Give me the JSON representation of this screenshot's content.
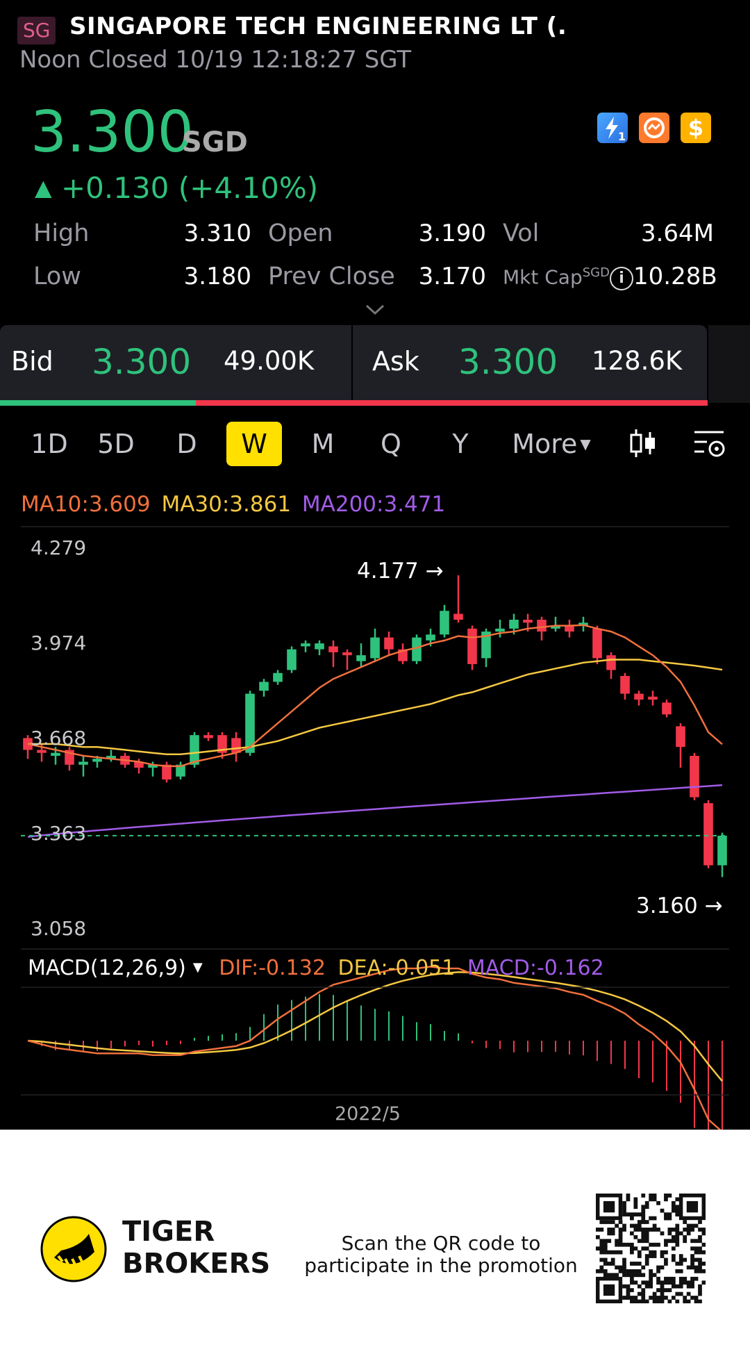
{
  "header": {
    "market_badge": "SG",
    "name": "SINGAPORE TECH ENGINEERING LT (.",
    "status": "Noon Closed 10/19 12:18:27 SGT"
  },
  "quote": {
    "price": "3.300",
    "currency": "SGD",
    "arrow": "▲",
    "change": "+0.130 (+4.10%)",
    "color_up": "#2fc27c",
    "color_down": "#f2374b"
  },
  "badges": [
    "lightning-icon",
    "exchange-icon",
    "dollar-icon"
  ],
  "badge_text": {
    "lightning": "1",
    "dollar": "$"
  },
  "stats": {
    "high_label": "High",
    "high": "3.310",
    "open_label": "Open",
    "open": "3.190",
    "vol_label": "Vol",
    "vol": "3.64M",
    "low_label": "Low",
    "low": "3.180",
    "prev_label": "Prev Close",
    "prev": "3.170",
    "mktcap_label": "Mkt Cap",
    "mktcap_sup": "SGD",
    "mktcap": "10.28B"
  },
  "bid_ask": {
    "bid_label": "Bid",
    "bid_price": "3.300",
    "bid_size": "49.00K",
    "ask_label": "Ask",
    "ask_price": "3.300",
    "ask_size": "128.6K",
    "bid_ratio": 0.277
  },
  "periods": {
    "tabs": [
      "1D",
      "5D",
      "D",
      "W",
      "M",
      "Q",
      "Y"
    ],
    "active": "W",
    "more_label": "More"
  },
  "ma": {
    "ma10": "MA10:3.609",
    "ma30": "MA30:3.861",
    "ma200": "MA200:3.471",
    "ma10_color": "#f0703c",
    "ma30_color": "#f5c842",
    "ma200_color": "#a25ce8"
  },
  "chart_data": {
    "type": "candlestick",
    "y_ticks": [
      "4.279",
      "3.974",
      "3.668",
      "3.363",
      "3.058"
    ],
    "ylim": [
      3.058,
      4.279
    ],
    "max_label": "4.177",
    "min_label": "3.160",
    "last_price_line": 3.3,
    "candles": [
      [
        3.63,
        3.59,
        3.64,
        3.56
      ],
      [
        3.59,
        3.58,
        3.61,
        3.55
      ],
      [
        3.57,
        3.58,
        3.6,
        3.54
      ],
      [
        3.59,
        3.54,
        3.6,
        3.52
      ],
      [
        3.54,
        3.55,
        3.57,
        3.5
      ],
      [
        3.55,
        3.56,
        3.57,
        3.53
      ],
      [
        3.56,
        3.57,
        3.59,
        3.55
      ],
      [
        3.57,
        3.54,
        3.58,
        3.53
      ],
      [
        3.55,
        3.53,
        3.56,
        3.51
      ],
      [
        3.53,
        3.54,
        3.55,
        3.5
      ],
      [
        3.54,
        3.49,
        3.55,
        3.48
      ],
      [
        3.5,
        3.54,
        3.55,
        3.49
      ],
      [
        3.54,
        3.64,
        3.65,
        3.53
      ],
      [
        3.64,
        3.63,
        3.65,
        3.62
      ],
      [
        3.64,
        3.58,
        3.65,
        3.56
      ],
      [
        3.63,
        3.58,
        3.65,
        3.55
      ],
      [
        3.58,
        3.78,
        3.79,
        3.57
      ],
      [
        3.79,
        3.82,
        3.83,
        3.77
      ],
      [
        3.82,
        3.85,
        3.86,
        3.81
      ],
      [
        3.86,
        3.93,
        3.94,
        3.85
      ],
      [
        3.94,
        3.95,
        3.96,
        3.92
      ],
      [
        3.93,
        3.95,
        3.96,
        3.91
      ],
      [
        3.94,
        3.92,
        3.96,
        3.87
      ],
      [
        3.92,
        3.91,
        3.93,
        3.86
      ],
      [
        3.89,
        3.91,
        3.95,
        3.87
      ],
      [
        3.9,
        3.97,
        4.0,
        3.89
      ],
      [
        3.97,
        3.93,
        3.99,
        3.91
      ],
      [
        3.93,
        3.89,
        3.95,
        3.88
      ],
      [
        3.89,
        3.97,
        3.98,
        3.88
      ],
      [
        3.96,
        3.98,
        4.0,
        3.94
      ],
      [
        3.98,
        4.06,
        4.08,
        3.97
      ],
      [
        4.05,
        4.03,
        4.18,
        4.02
      ],
      [
        4.0,
        3.88,
        4.01,
        3.86
      ],
      [
        3.9,
        3.99,
        4.0,
        3.87
      ],
      [
        3.99,
        4.0,
        4.03,
        3.97
      ],
      [
        4.0,
        4.03,
        4.05,
        3.98
      ],
      [
        4.03,
        4.02,
        4.05,
        3.99
      ],
      [
        4.03,
        3.99,
        4.04,
        3.96
      ],
      [
        4.0,
        4.01,
        4.04,
        3.99
      ],
      [
        4.01,
        3.99,
        4.03,
        3.97
      ],
      [
        4.01,
        4.02,
        4.04,
        3.99
      ],
      [
        4.0,
        3.9,
        4.01,
        3.88
      ],
      [
        3.91,
        3.86,
        3.92,
        3.83
      ],
      [
        3.84,
        3.78,
        3.85,
        3.76
      ],
      [
        3.78,
        3.76,
        3.79,
        3.74
      ],
      [
        3.77,
        3.76,
        3.79,
        3.74
      ],
      [
        3.75,
        3.71,
        3.76,
        3.7
      ],
      [
        3.67,
        3.6,
        3.68,
        3.53
      ],
      [
        3.57,
        3.43,
        3.58,
        3.42
      ],
      [
        3.41,
        3.2,
        3.42,
        3.19
      ],
      [
        3.2,
        3.3,
        3.31,
        3.16
      ]
    ],
    "ma10": [
      3.61,
      3.6,
      3.59,
      3.58,
      3.57,
      3.565,
      3.56,
      3.555,
      3.55,
      3.54,
      3.535,
      3.535,
      3.55,
      3.56,
      3.57,
      3.58,
      3.6,
      3.64,
      3.68,
      3.72,
      3.76,
      3.8,
      3.83,
      3.85,
      3.87,
      3.89,
      3.91,
      3.925,
      3.935,
      3.95,
      3.96,
      3.975,
      3.97,
      3.975,
      3.985,
      3.99,
      4.0,
      4.005,
      4.01,
      4.01,
      4.012,
      4.0,
      3.99,
      3.97,
      3.94,
      3.91,
      3.87,
      3.82,
      3.74,
      3.65,
      3.609
    ],
    "ma30": [
      3.61,
      3.61,
      3.61,
      3.605,
      3.6,
      3.6,
      3.595,
      3.59,
      3.585,
      3.58,
      3.575,
      3.575,
      3.58,
      3.585,
      3.59,
      3.595,
      3.6,
      3.61,
      3.62,
      3.635,
      3.65,
      3.665,
      3.675,
      3.685,
      3.695,
      3.705,
      3.715,
      3.725,
      3.735,
      3.745,
      3.76,
      3.775,
      3.785,
      3.8,
      3.815,
      3.83,
      3.845,
      3.855,
      3.865,
      3.875,
      3.885,
      3.89,
      3.895,
      3.895,
      3.895,
      3.89,
      3.885,
      3.88,
      3.875,
      3.868,
      3.861
    ],
    "ma200_start": 3.296,
    "ma200_end": 3.471,
    "macd": {
      "title": "MACD(12,26,9)",
      "dif_label": "DIF:-0.132",
      "dea_label": "DEA:-0.051",
      "macd_label": "MACD:-0.162",
      "dif_color": "#f0703c",
      "dea_color": "#f5c842",
      "macd_color": "#a25ce8"
    },
    "x_label": "2022/5"
  },
  "footer": {
    "brand_line1": "TIGER",
    "brand_line2": "BROKERS",
    "promo_line1": "Scan the QR code to",
    "promo_line2": "participate in the promotion"
  }
}
